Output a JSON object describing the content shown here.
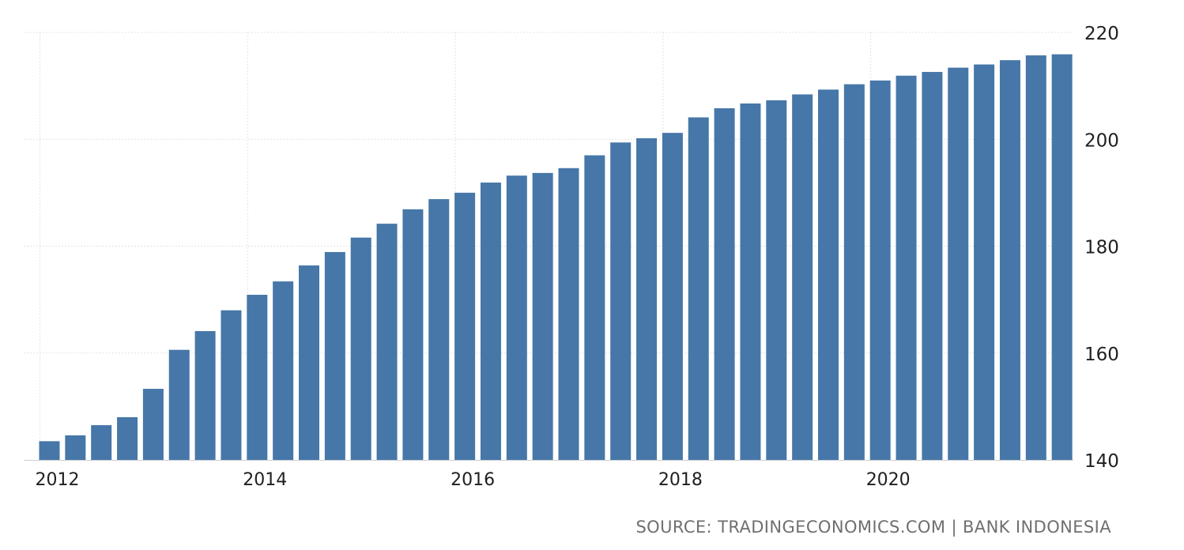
{
  "chart_data": {
    "type": "bar",
    "title": "",
    "xlabel": "",
    "ylabel": "",
    "x_tick_labels": [
      "2012",
      "2014",
      "2016",
      "2018",
      "2020"
    ],
    "y_tick_labels": [
      "140",
      "160",
      "180",
      "200",
      "220"
    ],
    "ylim": [
      140,
      220
    ],
    "grid": true,
    "y_axis_position": "right",
    "bar_color": "#4677a8",
    "categories": [
      "2012-Q1",
      "2012-Q2",
      "2012-Q3",
      "2012-Q4",
      "2013-Q1",
      "2013-Q2",
      "2013-Q3",
      "2013-Q4",
      "2014-Q1",
      "2014-Q2",
      "2014-Q3",
      "2014-Q4",
      "2015-Q1",
      "2015-Q2",
      "2015-Q3",
      "2015-Q4",
      "2016-Q1",
      "2016-Q2",
      "2016-Q3",
      "2016-Q4",
      "2017-Q1",
      "2017-Q2",
      "2017-Q3",
      "2017-Q4",
      "2018-Q1",
      "2018-Q2",
      "2018-Q3",
      "2018-Q4",
      "2019-Q1",
      "2019-Q2",
      "2019-Q3",
      "2019-Q4",
      "2020-Q1",
      "2020-Q2",
      "2020-Q3",
      "2020-Q4",
      "2021-Q1",
      "2021-Q2",
      "2021-Q3",
      "2021-Q4"
    ],
    "values": [
      143.5,
      144.6,
      146.5,
      148.0,
      153.3,
      160.6,
      164.1,
      168.0,
      170.9,
      173.4,
      176.4,
      178.9,
      181.6,
      184.2,
      186.9,
      188.8,
      190.0,
      191.9,
      193.2,
      193.7,
      194.6,
      197.0,
      199.4,
      200.2,
      201.2,
      204.1,
      205.8,
      206.7,
      207.3,
      208.4,
      209.3,
      210.3,
      211.0,
      211.9,
      212.6,
      213.4,
      214.0,
      214.8,
      215.7,
      215.9
    ]
  },
  "source_text": "SOURCE: TRADINGECONOMICS.COM | BANK INDONESIA"
}
